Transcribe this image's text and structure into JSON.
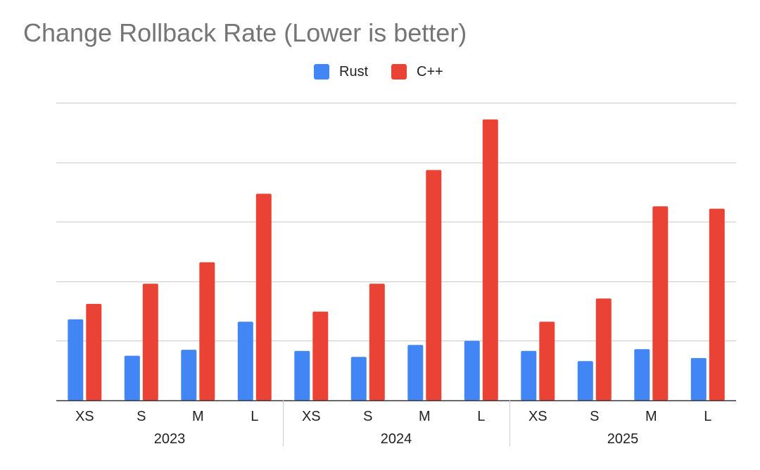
{
  "chart_data": {
    "type": "bar",
    "title": "Change Rollback Rate (Lower is better)",
    "xlabel": "",
    "ylabel": "",
    "ylim": [
      0,
      5
    ],
    "gridlines": [
      0,
      1,
      2,
      3,
      4,
      5
    ],
    "y_tick_labels_visible": false,
    "legend_position": "top-center",
    "groups": [
      {
        "label": "2023",
        "categories": [
          "XS",
          "S",
          "M",
          "L"
        ]
      },
      {
        "label": "2024",
        "categories": [
          "XS",
          "S",
          "M",
          "L"
        ]
      },
      {
        "label": "2025",
        "categories": [
          "XS",
          "S",
          "M",
          "L"
        ]
      }
    ],
    "series": [
      {
        "name": "Rust",
        "color": "#4285f4",
        "values": [
          1.36,
          0.75,
          0.85,
          1.32,
          0.83,
          0.73,
          0.93,
          1.0,
          0.83,
          0.66,
          0.86,
          0.71
        ]
      },
      {
        "name": "C++",
        "color": "#ea4335",
        "values": [
          1.62,
          1.96,
          2.32,
          3.47,
          1.49,
          1.96,
          3.87,
          4.72,
          1.32,
          1.71,
          3.26,
          3.22
        ]
      }
    ]
  }
}
